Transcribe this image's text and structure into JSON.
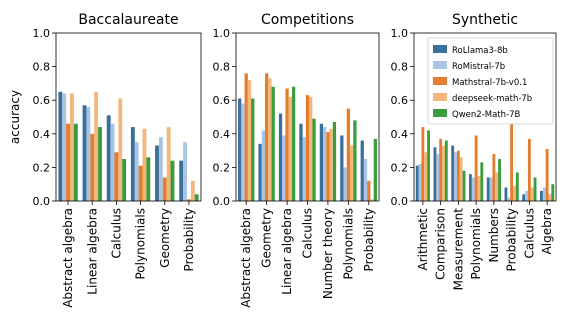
{
  "colors": {
    "RoLlama3-8b": "#3a6f9c",
    "RoMistral-7b": "#a9c4e2",
    "Mathstral-7b-v0.1": "#e47d2e",
    "deepseek-math-7b": "#f3b67d",
    "Qwen2-Math-7B": "#3a9c3a"
  },
  "y_axis": {
    "label": "accuracy",
    "ticks": [
      "0.0",
      "0.2",
      "0.4",
      "0.6",
      "0.8",
      "1.0"
    ]
  },
  "legend": {
    "placement": "top-right of third panel",
    "entries": [
      "RoLlama3-8b",
      "RoMistral-7b",
      "Mathstral-7b-v0.1",
      "deepseek-math-7b",
      "Qwen2-Math-7B"
    ]
  },
  "chart_data": [
    {
      "type": "bar",
      "title": "Baccalaureate",
      "ylabel": "accuracy",
      "ylim": [
        0,
        1
      ],
      "grid": false,
      "categories": [
        "Abstract algebra",
        "Linear algebra",
        "Calculus",
        "Polynomials",
        "Geometry",
        "Probability"
      ],
      "series": [
        {
          "name": "RoLlama3-8b",
          "values": [
            0.65,
            0.57,
            0.51,
            0.44,
            0.33,
            0.24
          ]
        },
        {
          "name": "RoMistral-7b",
          "values": [
            0.64,
            0.56,
            0.46,
            0.35,
            0.38,
            0.35
          ]
        },
        {
          "name": "Mathstral-7b-v0.1",
          "values": [
            0.46,
            0.4,
            0.29,
            0.21,
            0.14,
            0.01
          ]
        },
        {
          "name": "deepseek-math-7b",
          "values": [
            0.64,
            0.65,
            0.61,
            0.43,
            0.44,
            0.12
          ]
        },
        {
          "name": "Qwen2-Math-7B",
          "values": [
            0.46,
            0.44,
            0.25,
            0.26,
            0.24,
            0.04
          ]
        }
      ]
    },
    {
      "type": "bar",
      "title": "Competitions",
      "ylim": [
        0,
        1
      ],
      "grid": false,
      "categories": [
        "Abstract algebra",
        "Geometry",
        "Linear algebra",
        "Calculus",
        "Number theory",
        "Polynomials",
        "Probability"
      ],
      "series": [
        {
          "name": "RoLlama3-8b",
          "values": [
            0.61,
            0.34,
            0.52,
            0.46,
            0.46,
            0.39,
            0.36
          ]
        },
        {
          "name": "RoMistral-7b",
          "values": [
            0.58,
            0.42,
            0.39,
            0.38,
            0.44,
            0.2,
            0.25
          ]
        },
        {
          "name": "Mathstral-7b-v0.1",
          "values": [
            0.76,
            0.76,
            0.67,
            0.63,
            0.41,
            0.55,
            0.12
          ]
        },
        {
          "name": "deepseek-math-7b",
          "values": [
            0.72,
            0.73,
            0.62,
            0.62,
            0.43,
            0.33,
            0.01
          ]
        },
        {
          "name": "Qwen2-Math-7B",
          "values": [
            0.61,
            0.68,
            0.68,
            0.49,
            0.47,
            0.48,
            0.37
          ]
        }
      ]
    },
    {
      "type": "bar",
      "title": "Synthetic",
      "ylim": [
        0,
        1
      ],
      "grid": false,
      "categories": [
        "Arithmetic",
        "Comparison",
        "Measurement",
        "Polynomials",
        "Numbers",
        "Probability",
        "Calculus",
        "Algebra"
      ],
      "series": [
        {
          "name": "RoLlama3-8b",
          "values": [
            0.21,
            0.32,
            0.33,
            0.16,
            0.14,
            0.08,
            0.04,
            0.06
          ]
        },
        {
          "name": "RoMistral-7b",
          "values": [
            0.22,
            0.28,
            0.29,
            0.14,
            0.14,
            0.02,
            0.06,
            0.08
          ]
        },
        {
          "name": "Mathstral-7b-v0.1",
          "values": [
            0.44,
            0.37,
            0.3,
            0.39,
            0.28,
            0.46,
            0.37,
            0.31
          ]
        },
        {
          "name": "deepseek-math-7b",
          "values": [
            0.29,
            0.33,
            0.26,
            0.15,
            0.17,
            0.09,
            0.08,
            0.04
          ]
        },
        {
          "name": "Qwen2-Math-7B",
          "values": [
            0.42,
            0.36,
            0.18,
            0.23,
            0.25,
            0.17,
            0.14,
            0.1
          ]
        }
      ]
    }
  ]
}
